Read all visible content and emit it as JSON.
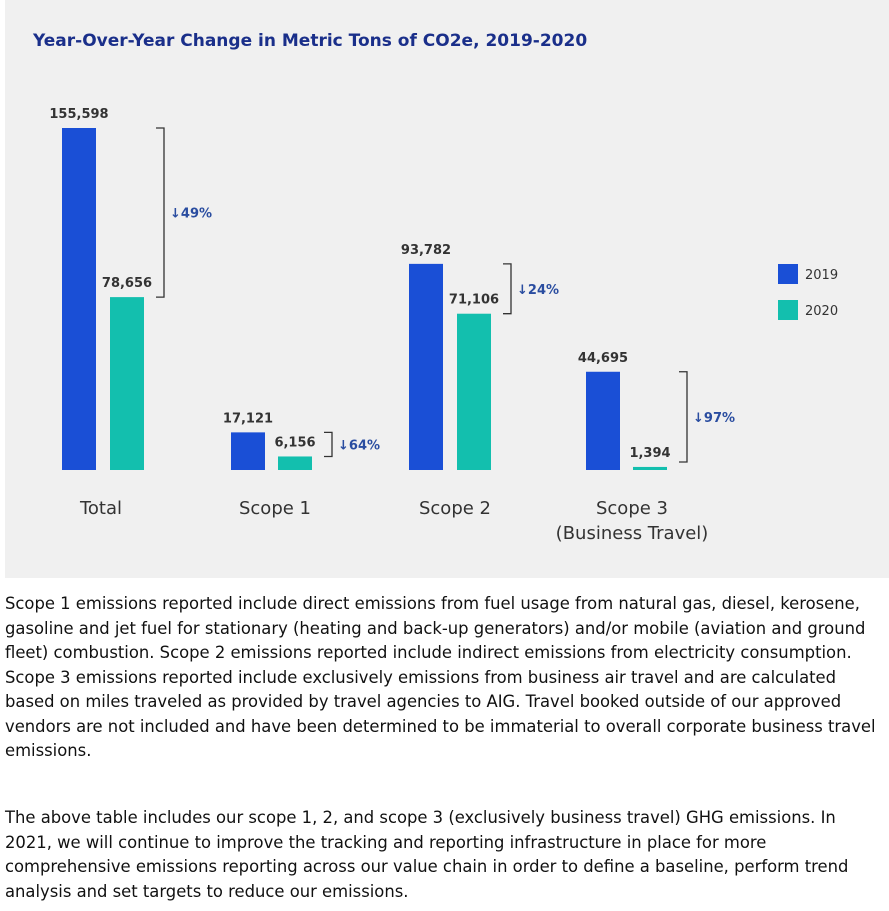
{
  "chart_data": {
    "type": "bar",
    "title": "Year-Over-Year Change in Metric Tons of CO2e, 2019-2020",
    "categories": [
      "Total",
      "Scope 1",
      "Scope 2",
      "Scope 3\n(Business Travel)"
    ],
    "series": [
      {
        "name": "2019",
        "color": "#1a4fd6",
        "values": [
          155598,
          17121,
          93782,
          44695
        ],
        "labels": [
          "155,598",
          "17,121",
          "93,782",
          "44,695"
        ]
      },
      {
        "name": "2020",
        "color": "#13bfae",
        "values": [
          78656,
          6156,
          71106,
          1394
        ],
        "labels": [
          "78,656",
          "6,156",
          "71,106",
          "1,394"
        ]
      }
    ],
    "changes": [
      "↓49%",
      "↓64%",
      "↓24%",
      "↓97%"
    ],
    "ylim": [
      0,
      155598
    ],
    "legend": "right",
    "grid": false
  },
  "text": {
    "paragraph1": "Scope 1 emissions reported include direct emissions from fuel usage from natural gas, diesel, kerosene, gasoline and jet fuel for stationary (heating and back-up generators) and/or mobile (aviation and ground fleet) combustion. Scope 2 emissions reported include indirect emissions from electricity consumption. Scope 3 emissions reported include exclusively emissions from business air travel and are calculated based on miles traveled as provided by travel agencies to AIG. Travel booked outside of our approved vendors are not included and have been determined to be immaterial to overall corporate business travel emissions.",
    "paragraph2": "The above table includes our scope 1, 2, and scope 3 (exclusively business travel) GHG emissions. In 2021, we will continue to improve the tracking and reporting infrastructure in place for more comprehensive emissions reporting across our value chain in order to define a baseline, perform trend analysis and set targets to reduce our emissions."
  }
}
